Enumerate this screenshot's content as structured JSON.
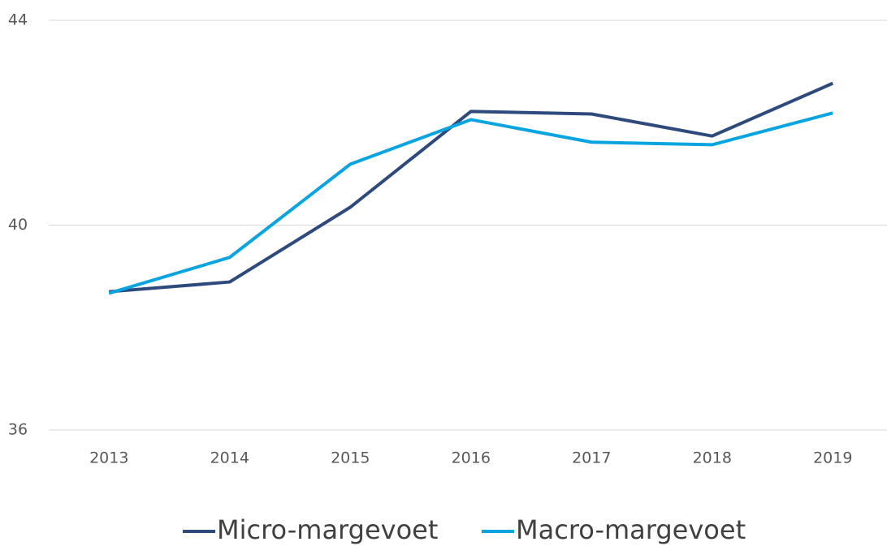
{
  "chart_data": {
    "type": "line",
    "categories": [
      "2013",
      "2014",
      "2015",
      "2016",
      "2017",
      "2018",
      "2019"
    ],
    "series": [
      {
        "name": "Micro-margevoet",
        "color": "#2e4a7d",
        "values": [
          38.7,
          38.89,
          40.35,
          42.22,
          42.17,
          41.74,
          42.77
        ]
      },
      {
        "name": "Macro-margevoet",
        "color": "#0aa5e0",
        "values": [
          38.67,
          39.37,
          41.19,
          42.06,
          41.62,
          41.57,
          42.19
        ]
      }
    ],
    "ylim": [
      36,
      44
    ],
    "yticks": [
      36,
      40,
      44
    ],
    "grid": true,
    "legend": "bottom"
  }
}
